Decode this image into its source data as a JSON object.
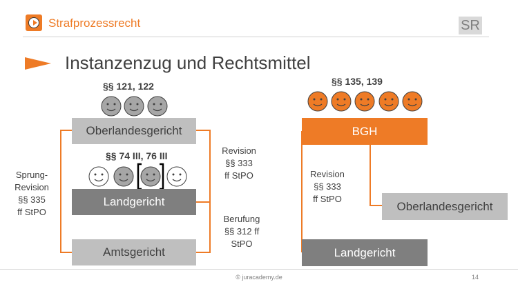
{
  "header": {
    "course_title": "Strafprozessrecht",
    "badge": "SR",
    "accent_color": "#ee7b26"
  },
  "slide": {
    "title": "Instanzenzug und Rechtsmittel"
  },
  "left": {
    "olg_paragraphs": "§§ 121, 122",
    "olg_label": "Oberlandesgericht",
    "lg_paragraphs": "§§ 74 III, 76 III",
    "lg_label": "Landgericht",
    "ag_label": "Amtsgericht",
    "sprung_revision": [
      "Sprung-",
      "Revision",
      "§§ 335",
      "ff StPO"
    ],
    "revision": [
      "Revision",
      "§§ 333",
      "ff StPO"
    ],
    "berufung": [
      "Berufung",
      "§§ 312 ff",
      "StPO"
    ]
  },
  "right": {
    "bgh_paragraphs": "§§ 135, 139",
    "bgh_label": "BGH",
    "olg_label": "Oberlandesgericht",
    "lg_label": "Landgericht",
    "revision": [
      "Revision",
      "§§ 333",
      "ff StPO"
    ]
  },
  "footer": {
    "copyright": "© juracademy.de",
    "page_number": "14"
  }
}
